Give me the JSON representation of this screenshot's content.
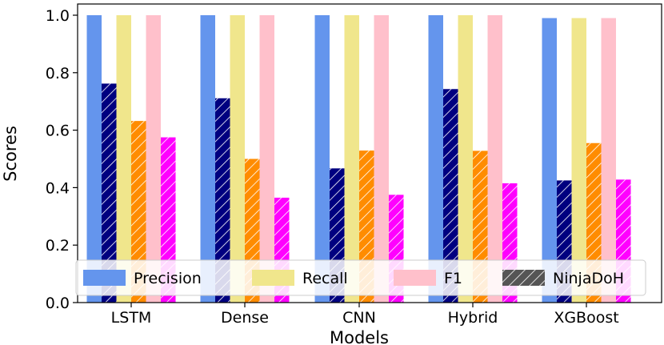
{
  "chart_data": {
    "type": "bar",
    "xlabel": "Models",
    "ylabel": "Scores",
    "ylim": [
      0,
      1.05
    ],
    "yticks": [
      "0.0",
      "0.2",
      "0.4",
      "0.6",
      "0.8",
      "1.0"
    ],
    "grid": false,
    "legend_position": "bottom",
    "categories": [
      "LSTM",
      "Dense",
      "CNN",
      "Hybrid",
      "XGBoost"
    ],
    "series": [
      {
        "name": "Precision",
        "dataset": "baseline",
        "color": "#6495ED",
        "hatched": false,
        "values": [
          1.0,
          1.0,
          1.0,
          1.0,
          0.99
        ]
      },
      {
        "name": "Precision",
        "dataset": "NinjaDoH",
        "color": "#000080",
        "hatched": true,
        "values": [
          0.762,
          0.711,
          0.467,
          0.743,
          0.425
        ]
      },
      {
        "name": "Recall",
        "dataset": "baseline",
        "color": "#F0E68C",
        "hatched": false,
        "values": [
          1.0,
          1.0,
          1.0,
          1.0,
          0.99
        ]
      },
      {
        "name": "Recall",
        "dataset": "NinjaDoH",
        "color": "#FF8C00",
        "hatched": true,
        "values": [
          0.632,
          0.5,
          0.529,
          0.528,
          0.555
        ]
      },
      {
        "name": "F1",
        "dataset": "baseline",
        "color": "#FFC0CB",
        "hatched": false,
        "values": [
          1.0,
          1.0,
          1.0,
          1.0,
          0.99
        ]
      },
      {
        "name": "F1",
        "dataset": "NinjaDoH",
        "color": "#FF00FF",
        "hatched": true,
        "values": [
          0.575,
          0.365,
          0.375,
          0.415,
          0.428
        ]
      }
    ],
    "legend": [
      {
        "label": "Precision",
        "color": "#6495ED",
        "hatched": false
      },
      {
        "label": "Recall",
        "color": "#F0E68C",
        "hatched": false
      },
      {
        "label": "F1",
        "color": "#FFC0CB",
        "hatched": false
      },
      {
        "label": "NinjaDoH",
        "color": "#555555",
        "hatched": true
      }
    ]
  }
}
